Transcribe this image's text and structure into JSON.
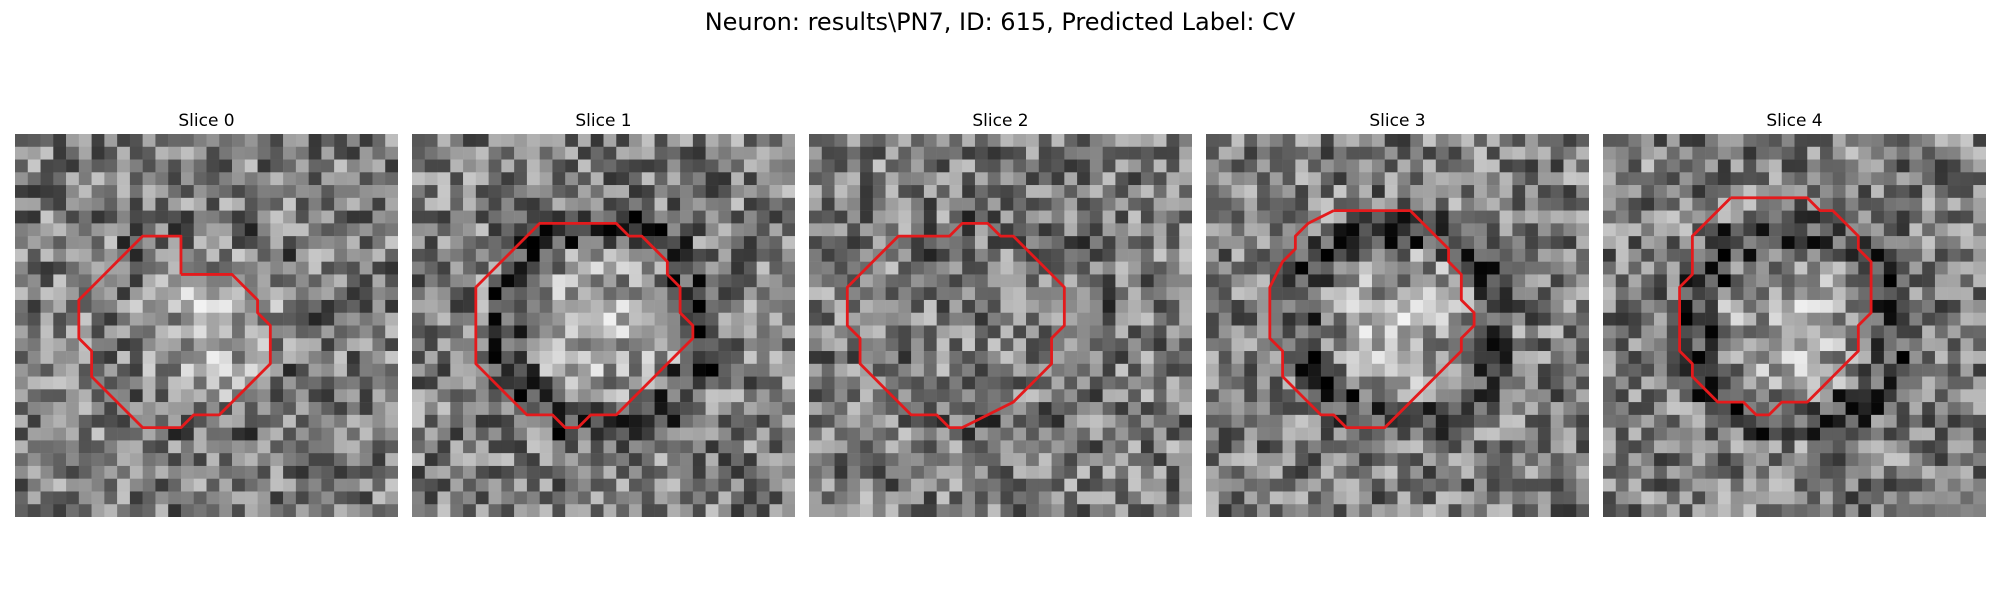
{
  "figure": {
    "title": "Neuron: results\\PN7, ID: 615, Predicted Label: CV"
  },
  "colors": {
    "contour": "#e41a1c",
    "background": "#ffffff"
  },
  "panels": [
    {
      "title": "Slice 0",
      "center": "bright",
      "rim": "faint",
      "seed": 11,
      "contour": [
        [
          13,
          11
        ],
        [
          17,
          11
        ],
        [
          18,
          12
        ],
        [
          19,
          13
        ],
        [
          19,
          14
        ],
        [
          20,
          15
        ],
        [
          20,
          18
        ],
        [
          19,
          19
        ],
        [
          18,
          20
        ],
        [
          17,
          21
        ],
        [
          16,
          22
        ],
        [
          14,
          22
        ],
        [
          13,
          23
        ],
        [
          10,
          23
        ],
        [
          9,
          22
        ],
        [
          8,
          21
        ],
        [
          7,
          20
        ],
        [
          6,
          19
        ],
        [
          6,
          17
        ],
        [
          5,
          16
        ],
        [
          5,
          13
        ],
        [
          6,
          12
        ],
        [
          7,
          11
        ],
        [
          8,
          10
        ],
        [
          9,
          9
        ],
        [
          10,
          8
        ],
        [
          13,
          8
        ],
        [
          13,
          11
        ]
      ]
    },
    {
      "title": "Slice 1",
      "center": "bright",
      "rim": "dark",
      "seed": 22,
      "contour": [
        [
          12,
          7
        ],
        [
          14,
          7
        ],
        [
          16,
          7
        ],
        [
          17,
          8
        ],
        [
          18,
          8
        ],
        [
          19,
          9
        ],
        [
          20,
          10
        ],
        [
          20,
          11
        ],
        [
          21,
          12
        ],
        [
          21,
          14
        ],
        [
          22,
          15
        ],
        [
          22,
          16
        ],
        [
          21,
          17
        ],
        [
          20,
          18
        ],
        [
          19,
          19
        ],
        [
          18,
          20
        ],
        [
          17,
          21
        ],
        [
          16,
          22
        ],
        [
          14,
          22
        ],
        [
          13,
          23
        ],
        [
          12,
          23
        ],
        [
          11,
          22
        ],
        [
          9,
          22
        ],
        [
          8,
          21
        ],
        [
          7,
          20
        ],
        [
          6,
          19
        ],
        [
          5,
          18
        ],
        [
          5,
          17
        ],
        [
          5,
          12
        ],
        [
          6,
          11
        ],
        [
          7,
          10
        ],
        [
          8,
          9
        ],
        [
          9,
          8
        ],
        [
          10,
          7
        ],
        [
          12,
          7
        ]
      ]
    },
    {
      "title": "Slice 2",
      "center": "flat",
      "rim": "faint",
      "seed": 33,
      "contour": [
        [
          9,
          8
        ],
        [
          11,
          8
        ],
        [
          12,
          7
        ],
        [
          14,
          7
        ],
        [
          15,
          8
        ],
        [
          16,
          8
        ],
        [
          17,
          9
        ],
        [
          18,
          10
        ],
        [
          19,
          11
        ],
        [
          20,
          12
        ],
        [
          20,
          15
        ],
        [
          19,
          16
        ],
        [
          19,
          18
        ],
        [
          18,
          19
        ],
        [
          17,
          20
        ],
        [
          16,
          21
        ],
        [
          14,
          22
        ],
        [
          12,
          23
        ],
        [
          11,
          23
        ],
        [
          10,
          22
        ],
        [
          8,
          22
        ],
        [
          7,
          21
        ],
        [
          6,
          20
        ],
        [
          5,
          19
        ],
        [
          4,
          18
        ],
        [
          4,
          16
        ],
        [
          3,
          15
        ],
        [
          3,
          12
        ],
        [
          4,
          11
        ],
        [
          5,
          10
        ],
        [
          6,
          9
        ],
        [
          7,
          8
        ],
        [
          9,
          8
        ]
      ]
    },
    {
      "title": "Slice 3",
      "center": "bright",
      "rim": "dark",
      "seed": 44,
      "contour": [
        [
          10,
          6
        ],
        [
          16,
          6
        ],
        [
          17,
          7
        ],
        [
          18,
          8
        ],
        [
          19,
          9
        ],
        [
          19,
          10
        ],
        [
          20,
          11
        ],
        [
          20,
          13
        ],
        [
          21,
          14
        ],
        [
          21,
          15
        ],
        [
          20,
          16
        ],
        [
          20,
          17
        ],
        [
          19,
          18
        ],
        [
          18,
          19
        ],
        [
          17,
          20
        ],
        [
          16,
          21
        ],
        [
          15,
          22
        ],
        [
          14,
          23
        ],
        [
          11,
          23
        ],
        [
          10,
          22
        ],
        [
          9,
          22
        ],
        [
          8,
          21
        ],
        [
          7,
          20
        ],
        [
          6,
          19
        ],
        [
          6,
          17
        ],
        [
          5,
          16
        ],
        [
          5,
          12
        ],
        [
          6,
          10
        ],
        [
          7,
          9
        ],
        [
          7,
          8
        ],
        [
          8,
          7
        ],
        [
          10,
          6
        ]
      ]
    },
    {
      "title": "Slice 4",
      "center": "bright",
      "rim": "dark",
      "seed": 55,
      "contour": [
        [
          10,
          5
        ],
        [
          16,
          5
        ],
        [
          17,
          6
        ],
        [
          18,
          6
        ],
        [
          19,
          7
        ],
        [
          20,
          8
        ],
        [
          20,
          9
        ],
        [
          21,
          10
        ],
        [
          21,
          14
        ],
        [
          20,
          15
        ],
        [
          20,
          17
        ],
        [
          19,
          18
        ],
        [
          18,
          19
        ],
        [
          17,
          20
        ],
        [
          16,
          21
        ],
        [
          14,
          21
        ],
        [
          13,
          22
        ],
        [
          12,
          22
        ],
        [
          11,
          21
        ],
        [
          9,
          21
        ],
        [
          8,
          20
        ],
        [
          7,
          19
        ],
        [
          7,
          18
        ],
        [
          6,
          17
        ],
        [
          6,
          12
        ],
        [
          7,
          11
        ],
        [
          7,
          8
        ],
        [
          8,
          7
        ],
        [
          9,
          6
        ],
        [
          10,
          5
        ]
      ]
    }
  ]
}
